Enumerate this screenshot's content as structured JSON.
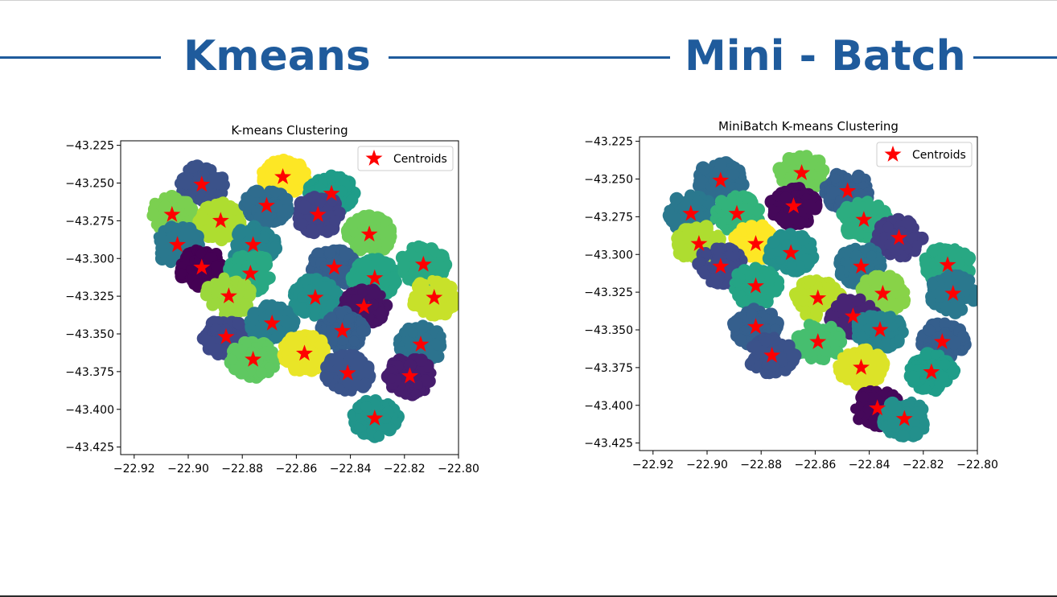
{
  "headings": {
    "left": "Kmeans",
    "right": "Mini - Batch"
  },
  "colors": {
    "accent": "#1f5b9c",
    "centroid": "#ff0000"
  },
  "chart_data": [
    {
      "type": "scatter",
      "title": "K-means Clustering",
      "xlabel": "",
      "ylabel": "",
      "xlim": [
        -22.925,
        -22.8
      ],
      "ylim": [
        -43.43,
        -43.222
      ],
      "xticks": [
        "−22.92",
        "−22.90",
        "−22.88",
        "−22.86",
        "−22.84",
        "−22.82",
        "−22.80"
      ],
      "yticks": [
        "−43.225",
        "−43.250",
        "−43.275",
        "−43.300",
        "−43.325",
        "−43.350",
        "−43.375",
        "−43.400",
        "−43.425"
      ],
      "legend": {
        "label": "Centroids",
        "placement": "top-right"
      },
      "colormap": "viridis",
      "clusters": [
        {
          "x": -22.895,
          "y": -43.251,
          "c": 0.25
        },
        {
          "x": -22.865,
          "y": -43.246,
          "c": 1.0
        },
        {
          "x": -22.847,
          "y": -43.257,
          "c": 0.55
        },
        {
          "x": -22.906,
          "y": -43.271,
          "c": 0.8
        },
        {
          "x": -22.888,
          "y": -43.275,
          "c": 0.88
        },
        {
          "x": -22.871,
          "y": -43.265,
          "c": 0.35
        },
        {
          "x": -22.852,
          "y": -43.271,
          "c": 0.2
        },
        {
          "x": -22.833,
          "y": -43.284,
          "c": 0.78
        },
        {
          "x": -22.904,
          "y": -43.291,
          "c": 0.4
        },
        {
          "x": -22.876,
          "y": -43.291,
          "c": 0.45
        },
        {
          "x": -22.895,
          "y": -43.306,
          "c": 0.0
        },
        {
          "x": -22.877,
          "y": -43.31,
          "c": 0.6
        },
        {
          "x": -22.846,
          "y": -43.306,
          "c": 0.3
        },
        {
          "x": -22.831,
          "y": -43.313,
          "c": 0.58
        },
        {
          "x": -22.813,
          "y": -43.304,
          "c": 0.6
        },
        {
          "x": -22.885,
          "y": -43.325,
          "c": 0.85
        },
        {
          "x": -22.853,
          "y": -43.326,
          "c": 0.5
        },
        {
          "x": -22.835,
          "y": -43.332,
          "c": 0.05
        },
        {
          "x": -22.809,
          "y": -43.326,
          "c": 0.92
        },
        {
          "x": -22.886,
          "y": -43.352,
          "c": 0.22
        },
        {
          "x": -22.869,
          "y": -43.343,
          "c": 0.42
        },
        {
          "x": -22.843,
          "y": -43.348,
          "c": 0.3
        },
        {
          "x": -22.814,
          "y": -43.357,
          "c": 0.38
        },
        {
          "x": -22.876,
          "y": -43.367,
          "c": 0.75
        },
        {
          "x": -22.857,
          "y": -43.363,
          "c": 0.97
        },
        {
          "x": -22.841,
          "y": -43.376,
          "c": 0.26
        },
        {
          "x": -22.818,
          "y": -43.378,
          "c": 0.08
        },
        {
          "x": -22.831,
          "y": -43.406,
          "c": 0.52
        }
      ]
    },
    {
      "type": "scatter",
      "title": "MiniBatch K-means Clustering",
      "xlabel": "",
      "ylabel": "",
      "xlim": [
        -22.925,
        -22.8
      ],
      "ylim": [
        -43.43,
        -43.222
      ],
      "xticks": [
        "−22.92",
        "−22.90",
        "−22.88",
        "−22.86",
        "−22.84",
        "−22.82",
        "−22.80"
      ],
      "yticks": [
        "−43.225",
        "−43.250",
        "−43.275",
        "−43.300",
        "−43.325",
        "−43.350",
        "−43.375",
        "−43.400",
        "−43.425"
      ],
      "legend": {
        "label": "Centroids",
        "placement": "top-right"
      },
      "colormap": "viridis",
      "clusters": [
        {
          "x": -22.895,
          "y": -43.251,
          "c": 0.35
        },
        {
          "x": -22.865,
          "y": -43.246,
          "c": 0.78
        },
        {
          "x": -22.848,
          "y": -43.258,
          "c": 0.3
        },
        {
          "x": -22.906,
          "y": -43.273,
          "c": 0.4
        },
        {
          "x": -22.889,
          "y": -43.273,
          "c": 0.65
        },
        {
          "x": -22.868,
          "y": -43.268,
          "c": 0.02
        },
        {
          "x": -22.842,
          "y": -43.277,
          "c": 0.62
        },
        {
          "x": -22.829,
          "y": -43.289,
          "c": 0.18
        },
        {
          "x": -22.903,
          "y": -43.293,
          "c": 0.88
        },
        {
          "x": -22.882,
          "y": -43.293,
          "c": 1.0
        },
        {
          "x": -22.869,
          "y": -43.299,
          "c": 0.5
        },
        {
          "x": -22.895,
          "y": -43.308,
          "c": 0.22
        },
        {
          "x": -22.843,
          "y": -43.308,
          "c": 0.38
        },
        {
          "x": -22.811,
          "y": -43.307,
          "c": 0.6
        },
        {
          "x": -22.882,
          "y": -43.321,
          "c": 0.58
        },
        {
          "x": -22.859,
          "y": -43.329,
          "c": 0.9
        },
        {
          "x": -22.835,
          "y": -43.326,
          "c": 0.82
        },
        {
          "x": -22.809,
          "y": -43.326,
          "c": 0.4
        },
        {
          "x": -22.846,
          "y": -43.341,
          "c": 0.1
        },
        {
          "x": -22.882,
          "y": -43.348,
          "c": 0.3
        },
        {
          "x": -22.836,
          "y": -43.35,
          "c": 0.45
        },
        {
          "x": -22.859,
          "y": -43.358,
          "c": 0.7
        },
        {
          "x": -22.813,
          "y": -43.358,
          "c": 0.3
        },
        {
          "x": -22.876,
          "y": -43.367,
          "c": 0.25
        },
        {
          "x": -22.843,
          "y": -43.375,
          "c": 0.95
        },
        {
          "x": -22.817,
          "y": -43.378,
          "c": 0.55
        },
        {
          "x": -22.837,
          "y": -43.402,
          "c": 0.02
        },
        {
          "x": -22.827,
          "y": -43.409,
          "c": 0.5
        }
      ]
    }
  ]
}
